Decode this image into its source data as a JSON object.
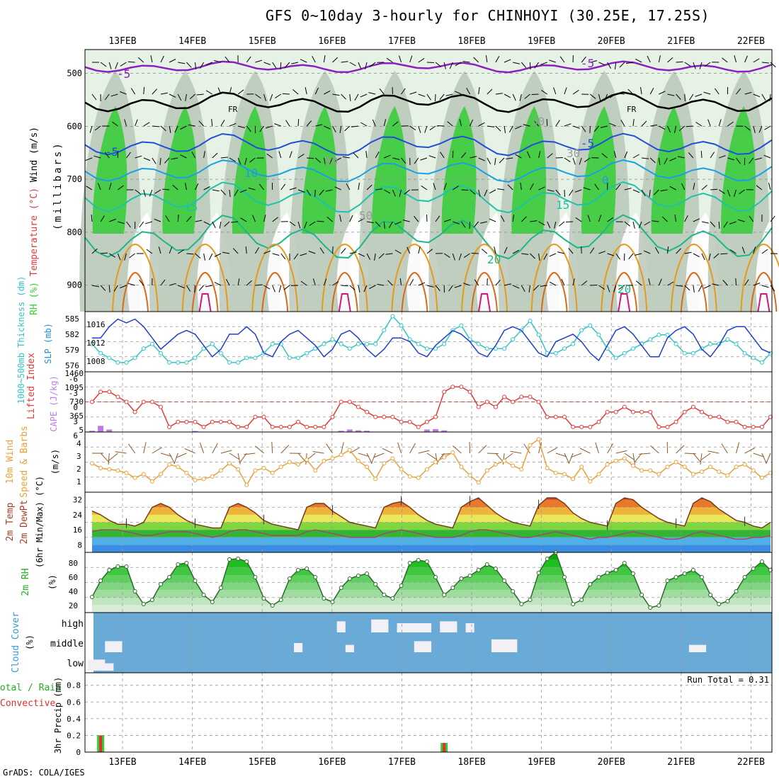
{
  "title": "GFS 0~10day 3-hourly for CHINHOYI (30.25E, 17.25S)",
  "footer": "GrADS: COLA/IGES",
  "dates": [
    "13FEB",
    "14FEB",
    "15FEB",
    "16FEB",
    "17FEB",
    "18FEB",
    "19FEB",
    "20FEB",
    "21FEB",
    "22FEB"
  ],
  "colors": {
    "rh_green": "#33cc33",
    "rh_light": "#e6f2e6",
    "rh_gray": "#b7c4b7",
    "temp_purple": "#8c1fbf",
    "temp_blue": "#1f4fd6",
    "temp_lightblue": "#1aa0e0",
    "temp_teal": "#1fc2a8",
    "temp_orange": "#e69a1a",
    "temp_magenta": "#d6157a",
    "slp_blue": "#1f3fc8",
    "thick_cyan": "#33c4c4",
    "cape_purple": "#c07ae6",
    "li_red": "#e03a3a",
    "wind_orange": "#e6a23a",
    "cloud_blue": "#6aaad6",
    "cloud_white": "#f2f0f5",
    "precip_green": "#33cc33",
    "precip_red": "#e03030"
  },
  "panels": {
    "upper": {
      "ylabel_parts": [
        "RH (%)",
        "Temperature (°C)",
        "Wind (m/s)"
      ],
      "ylabel2": "(millibars)",
      "yticks": [
        "500",
        "600",
        "700",
        "800",
        "900"
      ],
      "contour_labels": [
        "-5",
        "-5",
        "FR",
        "FR",
        "-5",
        "-5",
        "10",
        "0",
        "15",
        "15",
        "20",
        "20",
        "50",
        "50",
        "30",
        "30"
      ]
    },
    "slp": {
      "ylabel_left": "1000~500mb Thickness (dm)",
      "ylabel_right": "SLP (mb)",
      "left_ticks": [
        "585",
        "582",
        "579",
        "576"
      ],
      "right_ticks": [
        "1016",
        "1012",
        "1008"
      ]
    },
    "cape": {
      "ylabel_left": "Lifted Index",
      "ylabel_right": "CAPE (J/kg)",
      "left_ticks": [
        "-6",
        "-3",
        "0",
        "3",
        "6"
      ],
      "right_ticks": [
        "1460",
        "1095",
        "730",
        "365",
        "5"
      ]
    },
    "wind10": {
      "ylabel1": "10m Wind",
      "ylabel2": "Speed & Barbs",
      "ylabel3": "(m/s)",
      "ticks": [
        "4",
        "3",
        "2",
        "1"
      ]
    },
    "temp2m": {
      "ylabel1": "2m Temp",
      "ylabel2": "2m DewPt",
      "ylabel3": "(6hr Min/Max) (°C)",
      "ticks": [
        "32",
        "24",
        "16",
        "8"
      ]
    },
    "rh2m": {
      "ylabel1": "2m RH",
      "ylabel2": "(%)",
      "ticks": [
        "80",
        "60",
        "40",
        "20"
      ]
    },
    "cloud": {
      "ylabel1": "Cloud Cover",
      "ylabel2": "(%)",
      "levels": [
        "high",
        "middle",
        "low"
      ]
    },
    "precip": {
      "ylabel1": "Total / Rain",
      "ylabel2": "Convective",
      "ylabel3": "3hr Precip (mm)",
      "ticks": [
        "0.8",
        "0.6",
        "0.4",
        "0.2",
        "0"
      ],
      "run_total": "Run Total = 0.31"
    }
  },
  "chart_data": {
    "type": "line",
    "x_label": "3-hourly forecast time",
    "x_ticks": [
      "13FEB",
      "14FEB",
      "15FEB",
      "16FEB",
      "17FEB",
      "18FEB",
      "19FEB",
      "20FEB",
      "21FEB",
      "22FEB"
    ],
    "series": [
      {
        "name": "SLP (mb)",
        "values": [
          1013,
          1013,
          1016,
          1018,
          1017,
          1018,
          1016,
          1013,
          1010,
          1012,
          1014,
          1015,
          1014,
          1011,
          1008,
          1010,
          1014,
          1014,
          1016,
          1014,
          1009,
          1008,
          1012,
          1014,
          1015,
          1013,
          1011,
          1008,
          1010,
          1014,
          1015,
          1013,
          1010,
          1008,
          1010,
          1013,
          1013,
          1012,
          1009,
          1008,
          1011,
          1013,
          1015,
          1014,
          1012,
          1009,
          1008,
          1011,
          1015,
          1016,
          1015,
          1012,
          1009,
          1008,
          1012,
          1013,
          1014,
          1012,
          1009,
          1007,
          1011,
          1015,
          1016,
          1014,
          1011,
          1008,
          1008,
          1013,
          1015,
          1016,
          1014,
          1010,
          1008,
          1011,
          1015,
          1016,
          1016,
          1013,
          1010,
          1009
        ]
      },
      {
        "name": "1000~500mb Thickness (dm)",
        "values": [
          580,
          578,
          577,
          576,
          576,
          577,
          579,
          580,
          578,
          576,
          576,
          576,
          577,
          579,
          580,
          578,
          576,
          576,
          577,
          577,
          578,
          580,
          580,
          577,
          577,
          578,
          579,
          580,
          581,
          580,
          579,
          580,
          580,
          580,
          583,
          586,
          584,
          581,
          580,
          579,
          579,
          580,
          583,
          584,
          581,
          580,
          579,
          579,
          579,
          581,
          583,
          585,
          582,
          578,
          578,
          579,
          580,
          583,
          584,
          582,
          579,
          577,
          578,
          579,
          580,
          581,
          582,
          582,
          580,
          578,
          578,
          579,
          580,
          580,
          581,
          580,
          578,
          577,
          576,
          578
        ]
      },
      {
        "name": "Lifted Index",
        "values": [
          0,
          -2,
          -2,
          -1,
          0,
          2,
          0,
          0,
          1,
          5,
          4,
          4,
          4,
          5,
          4,
          4,
          4,
          5,
          5,
          3,
          3,
          5,
          5,
          5,
          4,
          5,
          5,
          5,
          3,
          0,
          0,
          1,
          2,
          3,
          3,
          3,
          4,
          4,
          5,
          4,
          3,
          -2,
          -3,
          -3,
          -2,
          1,
          0,
          1,
          -1,
          0,
          -1,
          -1,
          0,
          3,
          3,
          3,
          5,
          5,
          5,
          4,
          2,
          2,
          1,
          2,
          2,
          2,
          5,
          5,
          4,
          2,
          1,
          2,
          3,
          3,
          4,
          4,
          5,
          5,
          5,
          3
        ]
      },
      {
        "name": "CAPE (J/kg)",
        "values": [
          30,
          150,
          60,
          5,
          5,
          5,
          5,
          5,
          5,
          5,
          5,
          5,
          25,
          5,
          5,
          5,
          5,
          5,
          5,
          5,
          5,
          5,
          5,
          5,
          5,
          5,
          5,
          5,
          5,
          30,
          60,
          40,
          30,
          5,
          5,
          5,
          5,
          5,
          5,
          60,
          70,
          40,
          5,
          5,
          5,
          5,
          5,
          5,
          5,
          5,
          5,
          5,
          5,
          5,
          5,
          5,
          5,
          5,
          5,
          5,
          5,
          5,
          5,
          5,
          5,
          5,
          5,
          5,
          5,
          5,
          5,
          5,
          5,
          5,
          5,
          5,
          5,
          5,
          5,
          5
        ]
      },
      {
        "name": "10m Wind Speed (m/s)",
        "values": [
          2.4,
          2.0,
          1.9,
          1.8,
          1.6,
          1.2,
          1.5,
          0.9,
          1.5,
          2.3,
          2.1,
          1.6,
          1.0,
          1.1,
          1.3,
          1.8,
          2.4,
          1.9,
          0.6,
          1.8,
          2.0,
          1.6,
          2.1,
          2.5,
          2.3,
          2.7,
          1.8,
          2.6,
          2.8,
          3.1,
          3.5,
          2.6,
          2.1,
          1.1,
          2.4,
          2.8,
          1.9,
          1.3,
          1.2,
          1.9,
          2.5,
          2.9,
          3.3,
          2.1,
          1.4,
          0.8,
          1.8,
          2.3,
          2.6,
          2.2,
          1.9,
          3.9,
          4.4,
          2.0,
          1.6,
          1.5,
          1.1,
          2.1,
          0.9,
          1.5,
          2.3,
          2.6,
          2.8,
          2.2,
          1.8,
          1.8,
          1.5,
          2.1,
          2.5,
          2.1,
          1.5,
          1.7,
          2.1,
          1.7,
          1.4,
          2.1,
          2.3,
          1.8,
          1.2,
          1.6
        ]
      },
      {
        "name": "2m Temp (°C)",
        "values": [
          26,
          24,
          21,
          19,
          19,
          18,
          20,
          28,
          30,
          28,
          24,
          21,
          19,
          18,
          17,
          17,
          28,
          30,
          28,
          25,
          21,
          19,
          18,
          17,
          16,
          28,
          30,
          30,
          26,
          23,
          20,
          19,
          18,
          17,
          28,
          30,
          31,
          28,
          24,
          21,
          19,
          18,
          17,
          28,
          31,
          33,
          29,
          25,
          22,
          20,
          19,
          18,
          29,
          33,
          33,
          30,
          25,
          22,
          20,
          19,
          18,
          30,
          33,
          32,
          28,
          25,
          22,
          20,
          19,
          18,
          30,
          33,
          31,
          27,
          24,
          21,
          20,
          18,
          17,
          20
        ]
      },
      {
        "name": "2m DewPt (°C)",
        "values": [
          15,
          16,
          16,
          16,
          15,
          14,
          13,
          13,
          14,
          15,
          15,
          15,
          14,
          13,
          12,
          13,
          15,
          16,
          16,
          15,
          14,
          13,
          13,
          13,
          13,
          15,
          16,
          15,
          14,
          13,
          12,
          12,
          12,
          12,
          14,
          15,
          16,
          15,
          14,
          13,
          12,
          12,
          12,
          13,
          15,
          16,
          16,
          15,
          14,
          13,
          12,
          12,
          13,
          14,
          15,
          14,
          13,
          12,
          11,
          12,
          12,
          13,
          14,
          15,
          14,
          13,
          12,
          11,
          11,
          12,
          14,
          15,
          14,
          13,
          12,
          11,
          11,
          12,
          12,
          13
        ]
      },
      {
        "name": "2m RH (%)",
        "values": [
          32,
          55,
          70,
          75,
          75,
          40,
          22,
          28,
          50,
          60,
          78,
          80,
          55,
          35,
          25,
          45,
          85,
          86,
          82,
          60,
          30,
          20,
          28,
          58,
          70,
          72,
          60,
          30,
          25,
          45,
          58,
          62,
          65,
          50,
          35,
          30,
          48,
          80,
          84,
          82,
          60,
          35,
          45,
          58,
          62,
          70,
          78,
          72,
          55,
          40,
          22,
          28,
          66,
          86,
          95,
          60,
          22,
          28,
          50,
          60,
          66,
          70,
          80,
          65,
          35,
          17,
          20,
          55,
          60,
          65,
          70,
          60,
          35,
          22,
          26,
          40,
          60,
          72,
          82,
          70
        ]
      },
      {
        "name": "3hr Precip Total (mm)",
        "values": [
          0,
          0.2,
          0,
          0,
          0,
          0,
          0,
          0,
          0,
          0,
          0,
          0,
          0,
          0,
          0,
          0,
          0,
          0,
          0,
          0,
          0,
          0,
          0,
          0,
          0,
          0,
          0,
          0,
          0,
          0,
          0,
          0,
          0,
          0,
          0,
          0,
          0,
          0,
          0,
          0,
          0,
          0.11,
          0,
          0,
          0,
          0,
          0,
          0,
          0,
          0,
          0,
          0,
          0,
          0,
          0,
          0,
          0,
          0,
          0,
          0,
          0,
          0,
          0,
          0,
          0,
          0,
          0,
          0,
          0,
          0,
          0,
          0,
          0,
          0,
          0,
          0,
          0,
          0,
          0,
          0
        ]
      }
    ]
  }
}
